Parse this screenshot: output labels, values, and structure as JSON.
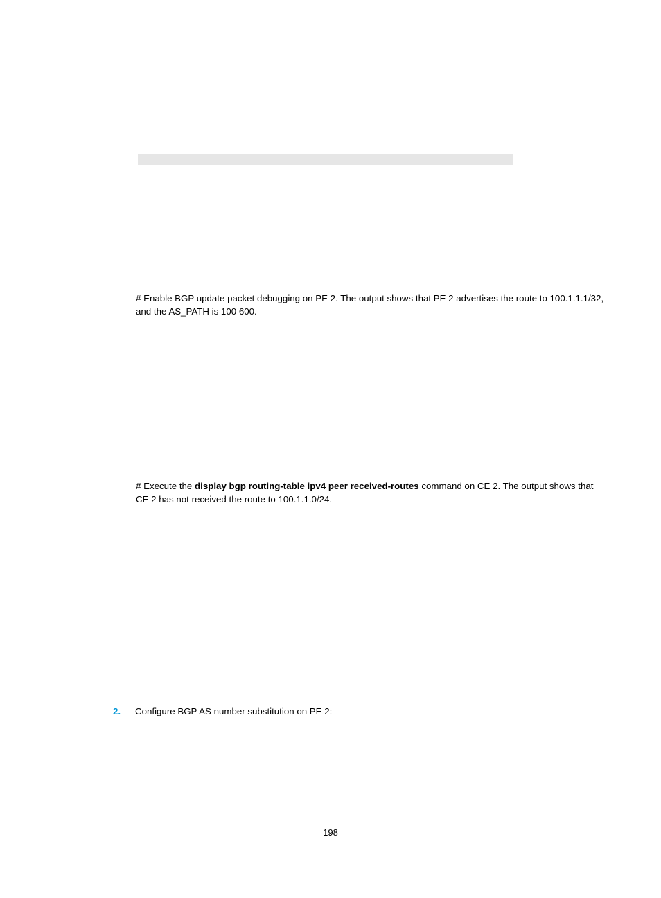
{
  "paragraph1": {
    "prefix": "# Enable BGP update packet debugging on PE 2. The output shows that PE 2 advertises the route to 100.1.1.1/32, and the AS_PATH is 100 600."
  },
  "paragraph2": {
    "prefix": "# Execute the ",
    "bold": "display bgp routing-table ipv4 peer received-routes",
    "suffix": " command on CE 2. The output shows that CE 2 has not received the route to 100.1.1.0/24."
  },
  "listItem": {
    "number": "2.",
    "text": "Configure BGP AS number substitution on PE 2:"
  },
  "pageNumber": "198",
  "colors": {
    "accent": "#0096d6",
    "grayBar": "#e6e6e6"
  }
}
